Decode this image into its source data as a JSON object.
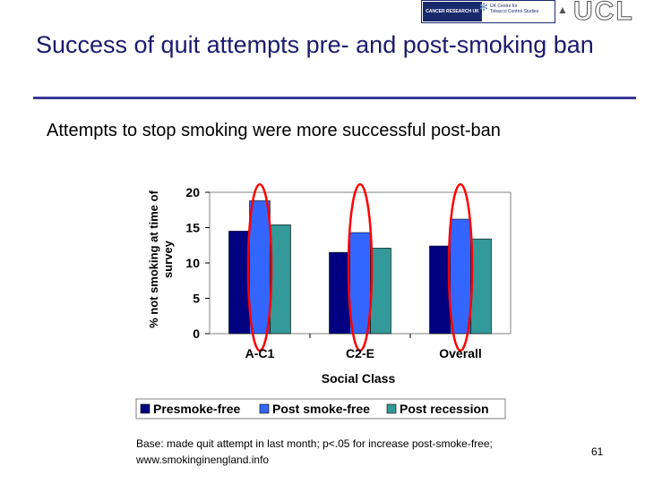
{
  "slide": {
    "title": "Success of quit attempts pre- and post-smoking ban",
    "subtitle": "Attempts to stop smoking were more successful post-ban",
    "footnote": "Base: made quit attempt in last month; p<.05 for increase post-smoke-free; www.smokinginengland.info",
    "page_number": "61",
    "logos": {
      "left": "CANCER RESEARCH UK",
      "center": "UK Centre for Tobacco Control Studies",
      "right": "UCL"
    }
  },
  "colors": {
    "title": "#1a1a6e",
    "rule": "#3b3b98",
    "presmoke": "#000080",
    "post_smoke": "#3366ff",
    "post_recession": "#339999",
    "highlight_ellipse": "#ff0000"
  },
  "chart_data": {
    "type": "bar",
    "categories": [
      "A-C1",
      "C2-E",
      "Overall"
    ],
    "series": [
      {
        "name": "Presmoke-free",
        "values": [
          14.5,
          11.5,
          12.4
        ]
      },
      {
        "name": "Post smoke-free",
        "values": [
          18.8,
          14.3,
          16.2
        ]
      },
      {
        "name": "Post recession",
        "values": [
          15.4,
          12.1,
          13.4
        ]
      }
    ],
    "xlabel": "Social Class",
    "ylabel": "% not smoking at time of survey",
    "ylim": [
      0,
      20
    ],
    "yticks": [
      0,
      5,
      10,
      15,
      20
    ],
    "grid": false,
    "legend_position": "bottom",
    "annotations": "red ellipses highlight the Post smoke-free bar in each group"
  }
}
